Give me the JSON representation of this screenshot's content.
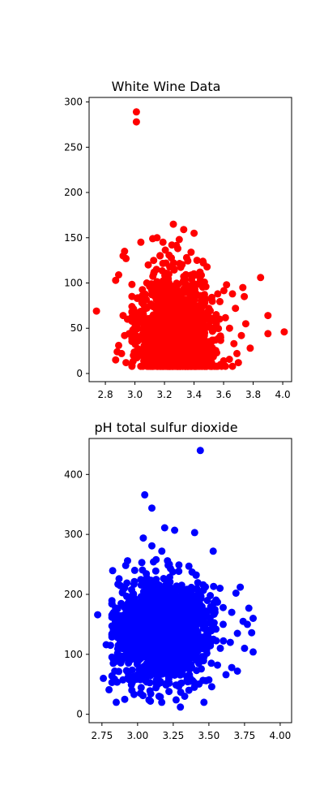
{
  "chart_data": [
    {
      "type": "scatter",
      "title": "White Wine Data",
      "xlabel": "",
      "ylabel": "",
      "color": "#ff0000",
      "grid": false,
      "xlim": [
        2.69,
        4.06
      ],
      "ylim": [
        -9,
        305
      ],
      "xticks": [
        2.8,
        3.0,
        3.2,
        3.4,
        3.6,
        3.8,
        4.0
      ],
      "xtick_labels": [
        "2.8",
        "3.0",
        "3.2",
        "3.4",
        "3.6",
        "3.8",
        "4.0"
      ],
      "yticks": [
        0,
        50,
        100,
        150,
        200,
        250,
        300
      ],
      "ytick_labels": [
        "0",
        "50",
        "100",
        "150",
        "200",
        "250",
        "300"
      ],
      "points": [
        [
          3.01,
          289
        ],
        [
          3.01,
          278
        ],
        [
          2.74,
          69
        ],
        [
          4.01,
          46
        ],
        [
          3.9,
          44
        ],
        [
          3.9,
          64
        ],
        [
          3.85,
          106
        ],
        [
          3.78,
          28
        ],
        [
          3.75,
          55
        ],
        [
          3.72,
          42
        ],
        [
          3.73,
          95
        ],
        [
          3.74,
          85
        ],
        [
          3.7,
          12
        ],
        [
          2.93,
          135
        ],
        [
          2.94,
          127
        ],
        [
          2.92,
          130
        ],
        [
          2.87,
          103
        ],
        [
          2.89,
          109
        ],
        [
          2.92,
          64
        ],
        [
          2.93,
          42
        ],
        [
          2.95,
          60
        ],
        [
          2.96,
          44
        ],
        [
          2.88,
          24
        ],
        [
          2.89,
          31
        ],
        [
          2.87,
          15
        ],
        [
          2.91,
          22
        ],
        [
          2.94,
          12
        ],
        [
          3.04,
          145
        ],
        [
          3.12,
          149
        ],
        [
          3.15,
          150
        ],
        [
          3.19,
          145
        ],
        [
          3.26,
          165
        ],
        [
          3.33,
          159
        ],
        [
          3.4,
          155
        ],
        [
          3.3,
          148
        ],
        [
          3.38,
          134
        ],
        [
          3.42,
          125
        ],
        [
          3.46,
          124
        ],
        [
          3.52,
          84
        ],
        [
          3.56,
          88
        ],
        [
          3.62,
          98
        ],
        [
          3.66,
          88
        ],
        [
          3.68,
          72
        ],
        [
          3.64,
          50
        ],
        [
          3.67,
          33
        ],
        [
          3.69,
          22
        ],
        [
          3.6,
          14
        ],
        [
          3.55,
          65
        ],
        [
          3.58,
          40
        ],
        [
          2.98,
          74
        ],
        [
          3.0,
          56
        ],
        [
          3.02,
          36
        ],
        [
          2.99,
          20
        ],
        [
          3.05,
          86
        ],
        [
          3.08,
          100
        ],
        [
          3.09,
          120
        ],
        [
          3.13,
          112
        ],
        [
          3.17,
          130
        ],
        [
          3.21,
          122
        ],
        [
          3.25,
          142
        ],
        [
          3.29,
          138
        ],
        [
          3.35,
          128
        ],
        [
          3.44,
          112
        ],
        [
          3.48,
          96
        ],
        [
          3.5,
          72
        ],
        [
          3.53,
          48
        ],
        [
          3.47,
          30
        ],
        [
          3.45,
          18
        ],
        [
          3.06,
          14
        ],
        [
          3.11,
          10
        ],
        [
          3.22,
          8
        ],
        [
          3.3,
          9
        ],
        [
          3.39,
          11
        ],
        [
          3.49,
          13
        ]
      ]
    },
    {
      "type": "scatter",
      "title": "pH total sulfur dioxide",
      "xlabel": "",
      "ylabel": "",
      "color": "#0000ff",
      "grid": false,
      "xlim": [
        2.66,
        4.08
      ],
      "ylim": [
        -14,
        460
      ],
      "xticks": [
        2.75,
        3.0,
        3.25,
        3.5,
        3.75,
        4.0
      ],
      "xtick_labels": [
        "2.75",
        "3.00",
        "3.25",
        "3.50",
        "3.75",
        "4.00"
      ],
      "yticks": [
        0,
        100,
        200,
        300,
        400
      ],
      "ytick_labels": [
        "0",
        "100",
        "200",
        "300",
        "400"
      ],
      "points": [
        [
          3.44,
          440
        ],
        [
          3.05,
          366
        ],
        [
          3.1,
          344
        ],
        [
          3.04,
          294
        ],
        [
          3.19,
          311
        ],
        [
          3.26,
          307
        ],
        [
          3.4,
          303
        ],
        [
          3.53,
          272
        ],
        [
          3.1,
          281
        ],
        [
          3.17,
          272
        ],
        [
          2.72,
          166
        ],
        [
          2.76,
          60
        ],
        [
          2.78,
          116
        ],
        [
          2.81,
          115
        ],
        [
          2.8,
          41
        ],
        [
          2.82,
          53
        ],
        [
          2.85,
          20
        ],
        [
          2.84,
          72
        ],
        [
          2.83,
          92
        ],
        [
          2.86,
          128
        ],
        [
          2.86,
          176
        ],
        [
          2.87,
          226
        ],
        [
          2.91,
          211
        ],
        [
          2.93,
          256
        ],
        [
          2.98,
          240
        ],
        [
          3.03,
          253
        ],
        [
          3.13,
          258
        ],
        [
          3.21,
          256
        ],
        [
          3.29,
          249
        ],
        [
          3.36,
          247
        ],
        [
          3.41,
          232
        ],
        [
          3.46,
          216
        ],
        [
          3.51,
          198
        ],
        [
          3.56,
          187
        ],
        [
          3.6,
          178
        ],
        [
          3.66,
          170
        ],
        [
          3.69,
          202
        ],
        [
          3.72,
          212
        ],
        [
          3.78,
          177
        ],
        [
          3.81,
          160
        ],
        [
          3.8,
          136
        ],
        [
          3.74,
          155
        ],
        [
          3.77,
          150
        ],
        [
          3.81,
          104
        ],
        [
          3.75,
          110
        ],
        [
          3.7,
          72
        ],
        [
          3.66,
          78
        ],
        [
          3.62,
          66
        ],
        [
          3.56,
          82
        ],
        [
          3.52,
          46
        ],
        [
          3.48,
          56
        ],
        [
          3.41,
          50
        ],
        [
          3.36,
          40
        ],
        [
          3.33,
          30
        ],
        [
          3.27,
          24
        ],
        [
          3.3,
          12
        ],
        [
          3.22,
          38
        ],
        [
          3.15,
          30
        ],
        [
          3.08,
          24
        ],
        [
          3.02,
          35
        ],
        [
          2.96,
          40
        ],
        [
          2.91,
          25
        ],
        [
          2.94,
          58
        ],
        [
          3.0,
          66
        ],
        [
          2.92,
          100
        ],
        [
          2.95,
          150
        ],
        [
          3.65,
          120
        ],
        [
          3.7,
          135
        ],
        [
          3.58,
          110
        ],
        [
          3.6,
          150
        ]
      ]
    }
  ]
}
